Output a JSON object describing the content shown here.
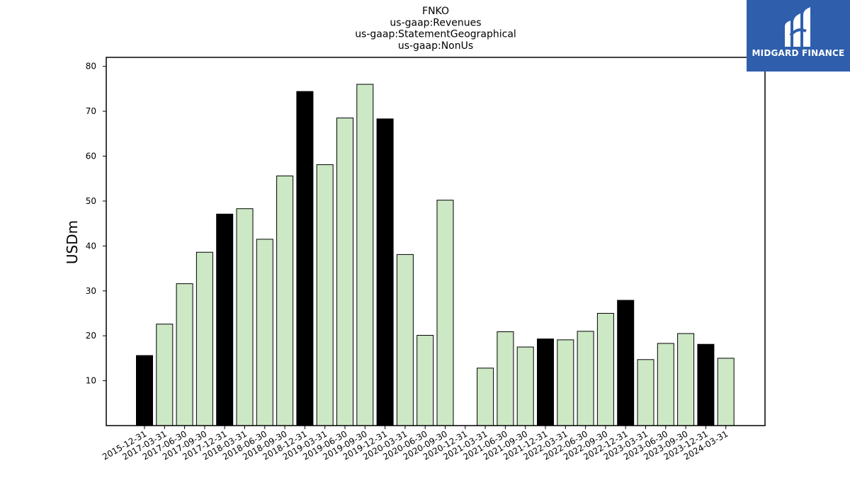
{
  "chart_data": {
    "type": "bar",
    "title_lines": [
      "FNKO",
      "us-gaap:Revenues",
      "us-gaap:StatementGeographical",
      "us-gaap:NonUs"
    ],
    "ylabel": "USDm",
    "xlabel": "",
    "ylim": [
      0,
      82
    ],
    "yticks": [
      10,
      20,
      30,
      40,
      50,
      60,
      70,
      80
    ],
    "grid": false,
    "categories": [
      "2015-12-31",
      "2017-03-31",
      "2017-06-30",
      "2017-09-30",
      "2017-12-31",
      "2018-03-31",
      "2018-06-30",
      "2018-09-30",
      "2018-12-31",
      "2019-03-31",
      "2019-06-30",
      "2019-09-30",
      "2019-12-31",
      "2020-03-31",
      "2020-06-30",
      "2020-09-30",
      "2020-12-31",
      "2021-03-31",
      "2021-06-30",
      "2021-09-30",
      "2021-12-31",
      "2022-03-31",
      "2022-06-30",
      "2022-09-30",
      "2022-12-31",
      "2023-03-31",
      "2023-06-30",
      "2023-09-30",
      "2023-12-31",
      "2024-03-31"
    ],
    "values": [
      15.6,
      22.6,
      31.6,
      38.6,
      47.1,
      48.3,
      41.5,
      55.6,
      74.4,
      58.1,
      68.5,
      76.0,
      68.3,
      38.1,
      20.1,
      50.2,
      null,
      12.8,
      20.9,
      17.5,
      19.3,
      19.1,
      21.0,
      25.0,
      27.9,
      14.7,
      18.3,
      20.5,
      18.1,
      15.0
    ],
    "bar_colors": {
      "annual": "#000000",
      "quarterly": "#cce8c5",
      "edge": "#000000"
    },
    "annual_flags": [
      true,
      false,
      false,
      false,
      true,
      false,
      false,
      false,
      true,
      false,
      false,
      false,
      true,
      false,
      false,
      false,
      true,
      false,
      false,
      false,
      true,
      false,
      false,
      false,
      true,
      false,
      false,
      false,
      true,
      false
    ]
  },
  "logo": {
    "text": "MIDGARD FINANCE",
    "background": "#2f5fac"
  }
}
